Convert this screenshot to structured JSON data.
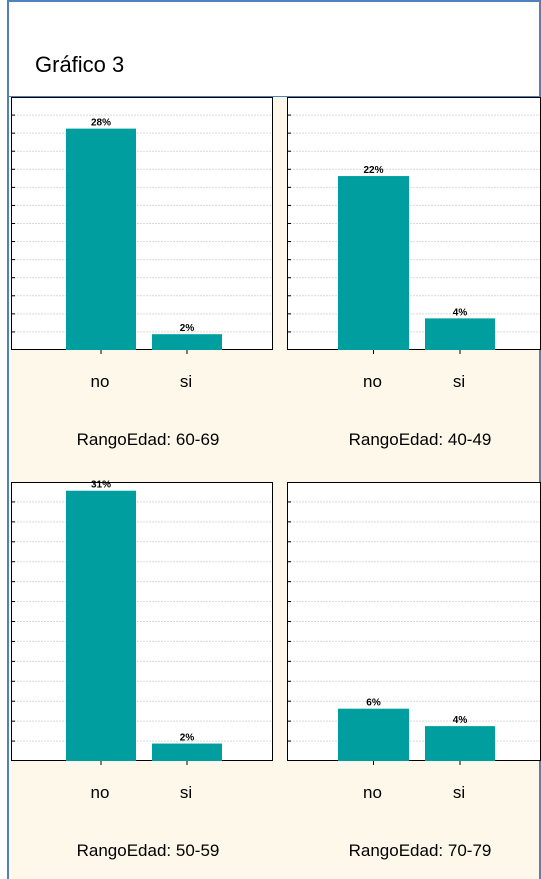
{
  "figure_title": "Gráfico 3",
  "colors": {
    "bar": "#009e9e",
    "panel_bg": "#fdf8ea",
    "plot_bg": "#ffffff",
    "grid": "#d9d9d9",
    "border": "#4f81bd"
  },
  "chart_data": [
    {
      "type": "bar",
      "title": "RangoEdad: 60-69",
      "categories": [
        "no",
        "si"
      ],
      "values": [
        28,
        2
      ],
      "labels": [
        "28%",
        "2%"
      ],
      "ylim": [
        0,
        32
      ]
    },
    {
      "type": "bar",
      "title": "RangoEdad: 40-49",
      "categories": [
        "no",
        "si"
      ],
      "values": [
        22,
        4
      ],
      "labels": [
        "22%",
        "4%"
      ],
      "ylim": [
        0,
        32
      ]
    },
    {
      "type": "bar",
      "title": "RangoEdad: 50-59",
      "categories": [
        "no",
        "si"
      ],
      "values": [
        31,
        2
      ],
      "labels": [
        "31%",
        "2%"
      ],
      "ylim": [
        0,
        32
      ]
    },
    {
      "type": "bar",
      "title": "RangoEdad: 70-79",
      "categories": [
        "no",
        "si"
      ],
      "values": [
        6,
        4
      ],
      "labels": [
        "6%",
        "4%"
      ],
      "ylim": [
        0,
        32
      ]
    }
  ]
}
